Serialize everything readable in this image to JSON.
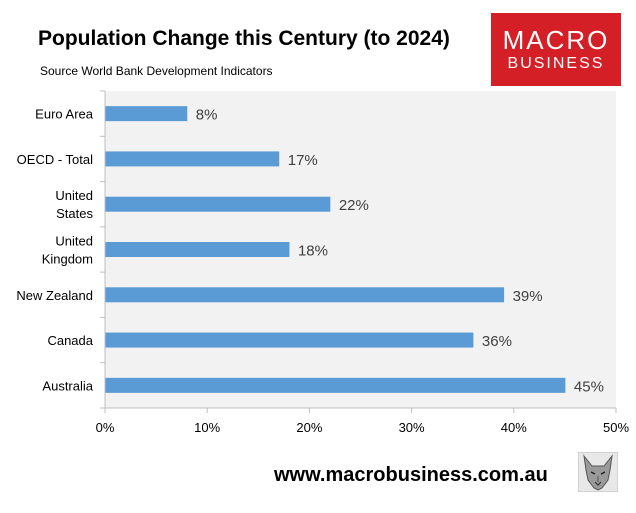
{
  "title": "Population Change this Century (to 2024)",
  "subtitle": "Source World Bank Development Indicators",
  "logo": {
    "line1": "MACRO",
    "line2": "BUSINESS",
    "color": "#d41f26"
  },
  "footer": {
    "url": "www.macrobusiness.com.au"
  },
  "colors": {
    "bar": "#5b9bd5",
    "plot_bg": "#f2f2f2",
    "axis": "#bfbfbf"
  },
  "chart_data": {
    "type": "bar",
    "orientation": "horizontal",
    "categories": [
      [
        "Euro Area"
      ],
      [
        "OECD - Total"
      ],
      [
        "United",
        "States"
      ],
      [
        "United",
        "Kingdom"
      ],
      [
        "New Zealand"
      ],
      [
        "Canada"
      ],
      [
        "Australia"
      ]
    ],
    "values": [
      8,
      17,
      22,
      18,
      39,
      36,
      45
    ],
    "value_labels": [
      "8%",
      "17%",
      "22%",
      "18%",
      "39%",
      "36%",
      "45%"
    ],
    "xlim": [
      0,
      50
    ],
    "xticks": [
      0,
      10,
      20,
      30,
      40,
      50
    ],
    "xtick_labels": [
      "0%",
      "10%",
      "20%",
      "30%",
      "40%",
      "50%"
    ],
    "title": "Population Change this Century (to 2024)",
    "xlabel": "",
    "ylabel": "",
    "grid": false,
    "legend": "none"
  }
}
